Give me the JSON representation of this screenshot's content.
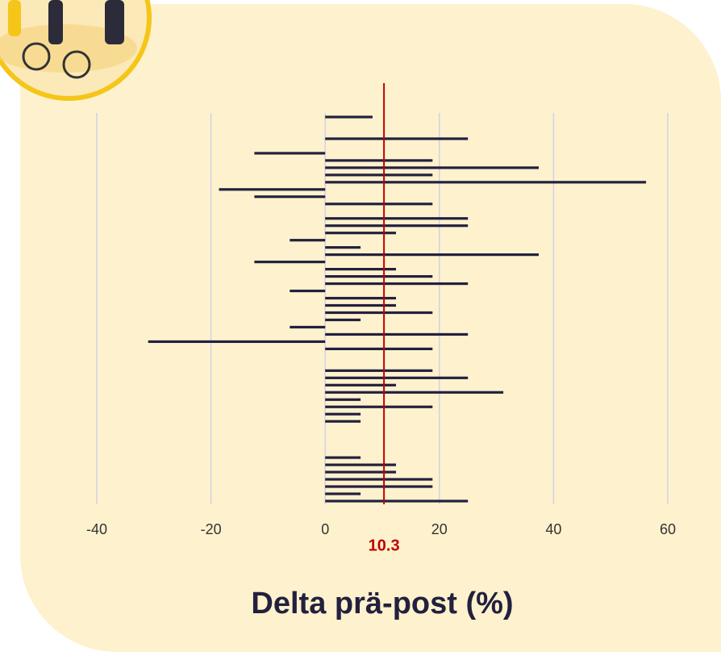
{
  "chart_data": {
    "type": "bar",
    "orientation": "horizontal",
    "xlabel": "Delta prä-post (%)",
    "categories": [
      null,
      null,
      null,
      null,
      null,
      null,
      null,
      null,
      null,
      null,
      null,
      null,
      null,
      null,
      null,
      null,
      null,
      null,
      null,
      null,
      null,
      null,
      null,
      null,
      null,
      null,
      null,
      null,
      null,
      null,
      null,
      null,
      null,
      null,
      null,
      null,
      null,
      null,
      null,
      null,
      null,
      null,
      null,
      null,
      null,
      null,
      null,
      null,
      null,
      null,
      null,
      null,
      null,
      null
    ],
    "values": [
      8.3,
      null,
      null,
      25,
      null,
      -12.4,
      18.8,
      37.4,
      18.8,
      56.2,
      -18.6,
      -12.4,
      18.8,
      null,
      25,
      25,
      12.4,
      -6.2,
      6.2,
      37.4,
      -12.4,
      12.4,
      18.8,
      25,
      -6.2,
      12.4,
      12.4,
      18.8,
      6.2,
      -6.2,
      25,
      -31,
      18.8,
      null,
      null,
      18.8,
      25,
      12.4,
      31.2,
      6.2,
      18.8,
      6.2,
      6.2,
      null,
      null,
      null,
      null,
      6.2,
      12.4,
      12.4,
      18.8,
      18.8,
      6.2,
      25
    ],
    "color": "#23203f",
    "xlim": [
      -40,
      60
    ],
    "xticks": [
      -40,
      -20,
      0,
      20,
      40,
      60
    ],
    "grid": true,
    "reference_line": {
      "value": 10.3,
      "color": "#c00000"
    }
  }
}
